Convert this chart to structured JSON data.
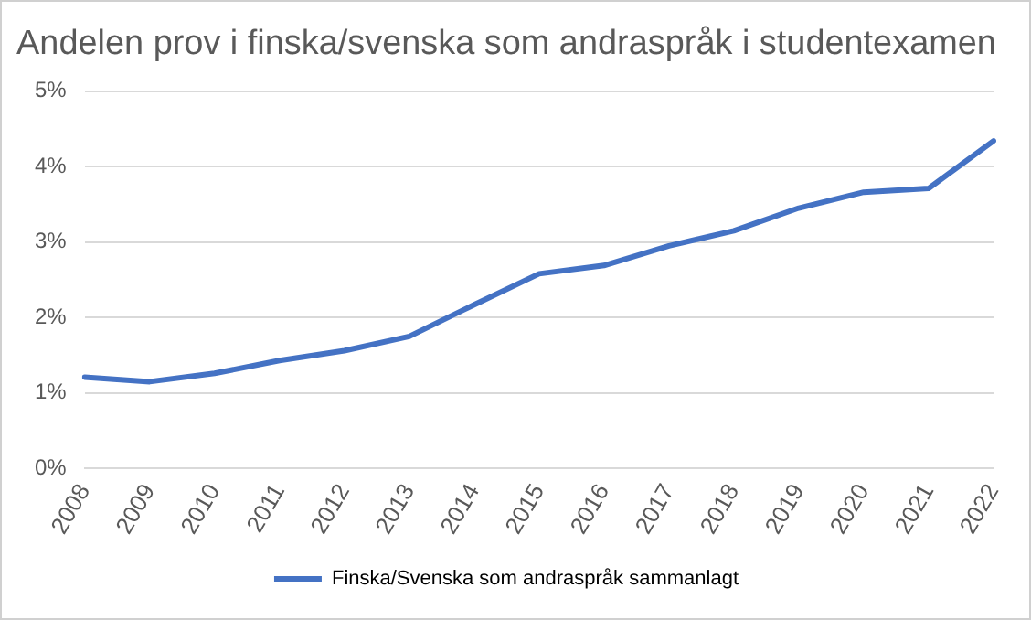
{
  "chart_data": {
    "type": "line",
    "title": "Andelen prov i finska/svenska som andraspråk i studentexamen",
    "categories": [
      "2008",
      "2009",
      "2010",
      "2011",
      "2012",
      "2013",
      "2014",
      "2015",
      "2016",
      "2017",
      "2018",
      "2019",
      "2020",
      "2021",
      "2022"
    ],
    "series": [
      {
        "name": "Finska/Svenska som andraspråk sammanlagt",
        "color": "#4472c4",
        "values": [
          1.21,
          1.15,
          1.26,
          1.43,
          1.56,
          1.75,
          2.17,
          2.58,
          2.69,
          2.95,
          3.15,
          3.45,
          3.66,
          3.71,
          4.34
        ]
      }
    ],
    "ylim": [
      0,
      5
    ],
    "yticks": [
      {
        "value": 0,
        "label": "0%"
      },
      {
        "value": 1,
        "label": "1%"
      },
      {
        "value": 2,
        "label": "2%"
      },
      {
        "value": 3,
        "label": "3%"
      },
      {
        "value": 4,
        "label": "4%"
      },
      {
        "value": 5,
        "label": "5%"
      }
    ],
    "grid": "y",
    "legend": "bottom",
    "marker": "none",
    "line_style": "solid"
  }
}
